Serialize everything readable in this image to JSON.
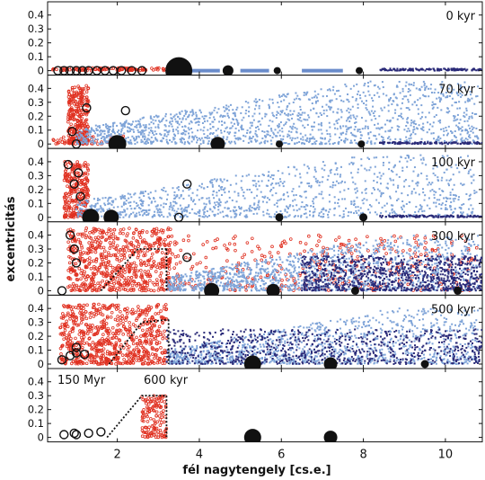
{
  "chart_data": {
    "type": "scatter",
    "xlabel": "fél nagytengely [cs.e.]",
    "ylabel": "excentricitás",
    "xlim": [
      0.3,
      10.9
    ],
    "ylim": [
      0,
      0.45
    ],
    "xticks": [
      "2",
      "4",
      "6",
      "8",
      "10"
    ],
    "xtick_values": [
      2,
      4,
      6,
      8,
      10
    ],
    "yticks": [
      "0",
      "0.1",
      "0.2",
      "0.3",
      "0.4"
    ],
    "ytick_values": [
      0,
      0.1,
      0.2,
      0.3,
      0.4
    ],
    "grid": false,
    "colors": {
      "red": "#e03020",
      "light_blue": "#7fa4d8",
      "dark_blue": "#2a2a78",
      "black": "#111111",
      "dash": "#6a8ccb"
    },
    "annotations": [
      "150 Myr",
      "600 kyr"
    ],
    "panels": [
      {
        "label": "0 kyr",
        "planets": [
          {
            "a": 3.5,
            "e": 0.0,
            "size": 3.0
          },
          {
            "a": 4.7,
            "e": 0.0,
            "size": 1.2
          },
          {
            "a": 5.9,
            "e": 0.0,
            "size": 0.8
          },
          {
            "a": 7.9,
            "e": 0.0,
            "size": 0.8
          }
        ],
        "open_circles": [
          {
            "a": 0.55,
            "e": 0.0
          },
          {
            "a": 0.7,
            "e": 0.0
          },
          {
            "a": 0.85,
            "e": 0.0
          },
          {
            "a": 1.0,
            "e": 0.0
          },
          {
            "a": 1.15,
            "e": 0.0
          },
          {
            "a": 1.3,
            "e": 0.0
          },
          {
            "a": 1.5,
            "e": 0.0
          },
          {
            "a": 1.7,
            "e": 0.0
          },
          {
            "a": 1.9,
            "e": 0.0
          },
          {
            "a": 2.1,
            "e": 0.0
          },
          {
            "a": 2.35,
            "e": 0.0
          },
          {
            "a": 2.6,
            "e": 0.0
          }
        ],
        "dashes": [
          [
            3.8,
            4.5
          ],
          [
            5.0,
            5.7
          ],
          [
            6.5,
            7.5
          ]
        ],
        "belts": [
          {
            "color": "red",
            "a0": 0.4,
            "a1": 3.2,
            "emax": 0.02,
            "n": 110
          },
          {
            "color": "dark_blue",
            "a0": 8.4,
            "a1": 10.9,
            "emax": 0.015,
            "n": 140
          }
        ],
        "lines": []
      },
      {
        "label": "70 kyr",
        "planets": [
          {
            "a": 2.0,
            "e": 0.0,
            "size": 2.0
          },
          {
            "a": 4.45,
            "e": 0.0,
            "size": 1.6
          },
          {
            "a": 5.95,
            "e": 0.0,
            "size": 0.8
          },
          {
            "a": 7.95,
            "e": 0.0,
            "size": 0.8
          }
        ],
        "open_circles": [
          {
            "a": 1.25,
            "e": 0.26
          },
          {
            "a": 2.2,
            "e": 0.24
          },
          {
            "a": 0.9,
            "e": 0.09
          },
          {
            "a": 1.0,
            "e": 0.0
          }
        ],
        "dashes": [],
        "belts": [
          {
            "color": "red",
            "a0": 0.8,
            "a1": 1.3,
            "emax": 0.42,
            "n": 280
          },
          {
            "color": "red",
            "a0": 0.4,
            "a1": 2.2,
            "emax": 0.06,
            "n": 60
          },
          {
            "color": "light_blue",
            "a0": 1.0,
            "a1": 10.8,
            "emax": 0.45,
            "n": 1500
          },
          {
            "color": "dark_blue",
            "a0": 8.4,
            "a1": 10.9,
            "emax": 0.015,
            "n": 120
          }
        ],
        "lines": []
      },
      {
        "label": "100 kyr",
        "planets": [
          {
            "a": 1.35,
            "e": 0.0,
            "size": 1.9
          },
          {
            "a": 1.85,
            "e": 0.0,
            "size": 1.7
          },
          {
            "a": 5.95,
            "e": 0.0,
            "size": 0.9
          },
          {
            "a": 8.0,
            "e": 0.0,
            "size": 0.9
          }
        ],
        "open_circles": [
          {
            "a": 0.8,
            "e": 0.38
          },
          {
            "a": 1.05,
            "e": 0.32
          },
          {
            "a": 0.95,
            "e": 0.24
          },
          {
            "a": 1.1,
            "e": 0.15
          },
          {
            "a": 3.7,
            "e": 0.24
          },
          {
            "a": 3.5,
            "e": 0.0
          }
        ],
        "dashes": [],
        "belts": [
          {
            "color": "red",
            "a0": 0.7,
            "a1": 1.3,
            "emax": 0.4,
            "n": 260
          },
          {
            "color": "light_blue",
            "a0": 1.0,
            "a1": 10.8,
            "emax": 0.45,
            "n": 1100
          },
          {
            "color": "dark_blue",
            "a0": 8.4,
            "a1": 10.9,
            "emax": 0.015,
            "n": 120
          }
        ],
        "lines": []
      },
      {
        "label": "300 kyr",
        "planets": [
          {
            "a": 4.3,
            "e": 0.0,
            "size": 1.7
          },
          {
            "a": 5.8,
            "e": 0.0,
            "size": 1.5
          },
          {
            "a": 7.8,
            "e": 0.0,
            "size": 0.9
          },
          {
            "a": 10.3,
            "e": 0.0,
            "size": 0.9
          }
        ],
        "open_circles": [
          {
            "a": 0.85,
            "e": 0.4
          },
          {
            "a": 0.95,
            "e": 0.3
          },
          {
            "a": 1.0,
            "e": 0.2
          },
          {
            "a": 3.7,
            "e": 0.24
          },
          {
            "a": 0.65,
            "e": 0.0
          }
        ],
        "dashes": [],
        "belts": [
          {
            "color": "red",
            "a0": 0.8,
            "a1": 3.3,
            "emax": 0.45,
            "n": 650
          },
          {
            "color": "red",
            "a0": 3.3,
            "a1": 10.8,
            "emax": 0.4,
            "n": 350
          },
          {
            "color": "light_blue",
            "a0": 3.2,
            "a1": 10.8,
            "emax": 0.4,
            "n": 1300
          },
          {
            "color": "dark_blue",
            "a0": 6.5,
            "a1": 10.9,
            "emax": 0.25,
            "n": 900
          }
        ],
        "lines": [
          {
            "pts": [
              [
                1.6,
                0.0
              ],
              [
                2.5,
                0.3
              ],
              [
                3.2,
                0.3
              ]
            ]
          },
          {
            "pts": [
              [
                3.2,
                0.3
              ],
              [
                3.2,
                0.0
              ]
            ]
          }
        ]
      },
      {
        "label": "500 kyr",
        "planets": [
          {
            "a": 5.3,
            "e": 0.0,
            "size": 1.9
          },
          {
            "a": 7.2,
            "e": 0.0,
            "size": 1.5
          },
          {
            "a": 9.5,
            "e": 0.0,
            "size": 0.9
          }
        ],
        "open_circles": [
          {
            "a": 0.65,
            "e": 0.03
          },
          {
            "a": 0.85,
            "e": 0.06
          },
          {
            "a": 1.0,
            "e": 0.08
          },
          {
            "a": 1.2,
            "e": 0.07
          },
          {
            "a": 1.0,
            "e": 0.12
          }
        ],
        "dashes": [],
        "belts": [
          {
            "color": "red",
            "a0": 0.6,
            "a1": 3.2,
            "emax": 0.43,
            "n": 700
          },
          {
            "color": "light_blue",
            "a0": 3.2,
            "a1": 10.8,
            "emax": 0.4,
            "n": 1200
          },
          {
            "color": "dark_blue",
            "a0": 3.2,
            "a1": 10.9,
            "emax": 0.25,
            "n": 800
          }
        ],
        "lines": [
          {
            "pts": [
              [
                1.8,
                0.0
              ],
              [
                2.6,
                0.3
              ],
              [
                3.25,
                0.32
              ]
            ]
          },
          {
            "pts": [
              [
                3.25,
                0.32
              ],
              [
                3.25,
                0.0
              ]
            ]
          }
        ]
      },
      {
        "label": "",
        "planets": [
          {
            "a": 5.3,
            "e": 0.0,
            "size": 1.9
          },
          {
            "a": 7.2,
            "e": 0.0,
            "size": 1.5
          }
        ],
        "open_circles": [
          {
            "a": 0.7,
            "e": 0.02
          },
          {
            "a": 0.95,
            "e": 0.03
          },
          {
            "a": 1.3,
            "e": 0.03
          },
          {
            "a": 1.6,
            "e": 0.04
          },
          {
            "a": 1.0,
            "e": 0.02
          }
        ],
        "dashes": [],
        "belts": [
          {
            "color": "red",
            "a0": 2.6,
            "a1": 3.2,
            "emax": 0.3,
            "n": 130
          }
        ],
        "lines": [
          {
            "pts": [
              [
                1.75,
                0.0
              ],
              [
                2.6,
                0.3
              ],
              [
                3.2,
                0.3
              ]
            ]
          },
          {
            "pts": [
              [
                3.2,
                0.3
              ],
              [
                3.2,
                0.0
              ]
            ]
          }
        ]
      }
    ]
  }
}
